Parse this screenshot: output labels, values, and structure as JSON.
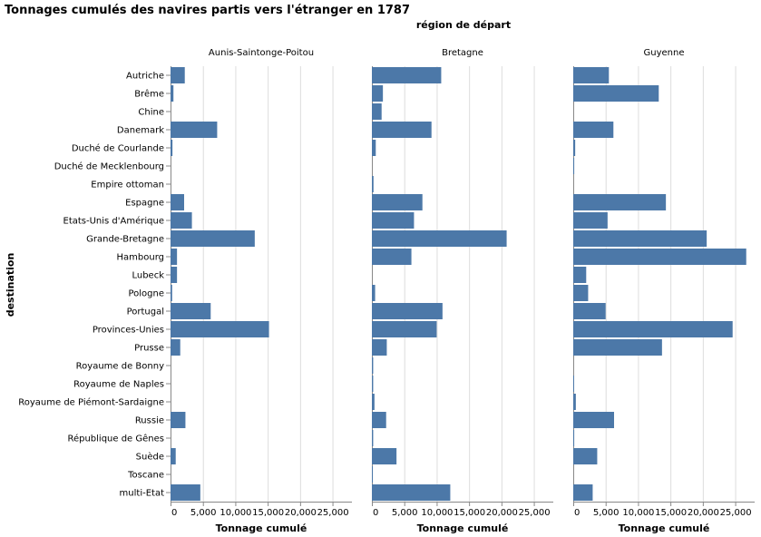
{
  "chart_data": {
    "type": "bar",
    "orientation": "horizontal",
    "title": "Tonnages cumulés des navires partis vers l'étranger en 1787",
    "facet_title": "région de départ",
    "xlabel": "Tonnage cumulé",
    "ylabel": "destination",
    "xlim": [
      0,
      28000
    ],
    "xticks": [
      0,
      5000,
      10000,
      15000,
      20000,
      25000
    ],
    "xtick_labels": [
      "0",
      "5,000",
      "10,000",
      "15,000",
      "20,000",
      "25,000"
    ],
    "grid": true,
    "bar_color": "#4c78a8",
    "categories": [
      "Autriche",
      "Brême",
      "Chine",
      "Danemark",
      "Duché de Courlande",
      "Duché de Mecklenbourg",
      "Empire ottoman",
      "Espagne",
      "Etats-Unis d'Amérique",
      "Grande-Bretagne",
      "Hambourg",
      "Lubeck",
      "Pologne",
      "Portugal",
      "Provinces-Unies",
      "Prusse",
      "Royaume de Bonny",
      "Royaume de Naples",
      "Royaume de Piémont-Sardaigne",
      "Russie",
      "République de Gênes",
      "Suède",
      "Toscane",
      "multi-Etat"
    ],
    "series": [
      {
        "name": "Aunis-Saintonge-Poitou",
        "values": [
          2200,
          450,
          0,
          7200,
          300,
          0,
          0,
          2100,
          3300,
          13000,
          1000,
          1000,
          250,
          6200,
          15200,
          1500,
          0,
          0,
          0,
          2300,
          0,
          800,
          0,
          4600
        ]
      },
      {
        "name": "Bretagne",
        "values": [
          10700,
          1700,
          1500,
          9200,
          600,
          0,
          250,
          7800,
          6500,
          20800,
          6100,
          0,
          500,
          10900,
          10000,
          2300,
          200,
          200,
          400,
          2200,
          200,
          3800,
          150,
          12100
        ]
      },
      {
        "name": "Guyenne",
        "values": [
          5500,
          13200,
          0,
          6200,
          300,
          150,
          0,
          14300,
          5300,
          20600,
          26700,
          2000,
          2300,
          5000,
          24600,
          13700,
          0,
          100,
          400,
          6300,
          150,
          3700,
          0,
          3000
        ]
      }
    ]
  }
}
